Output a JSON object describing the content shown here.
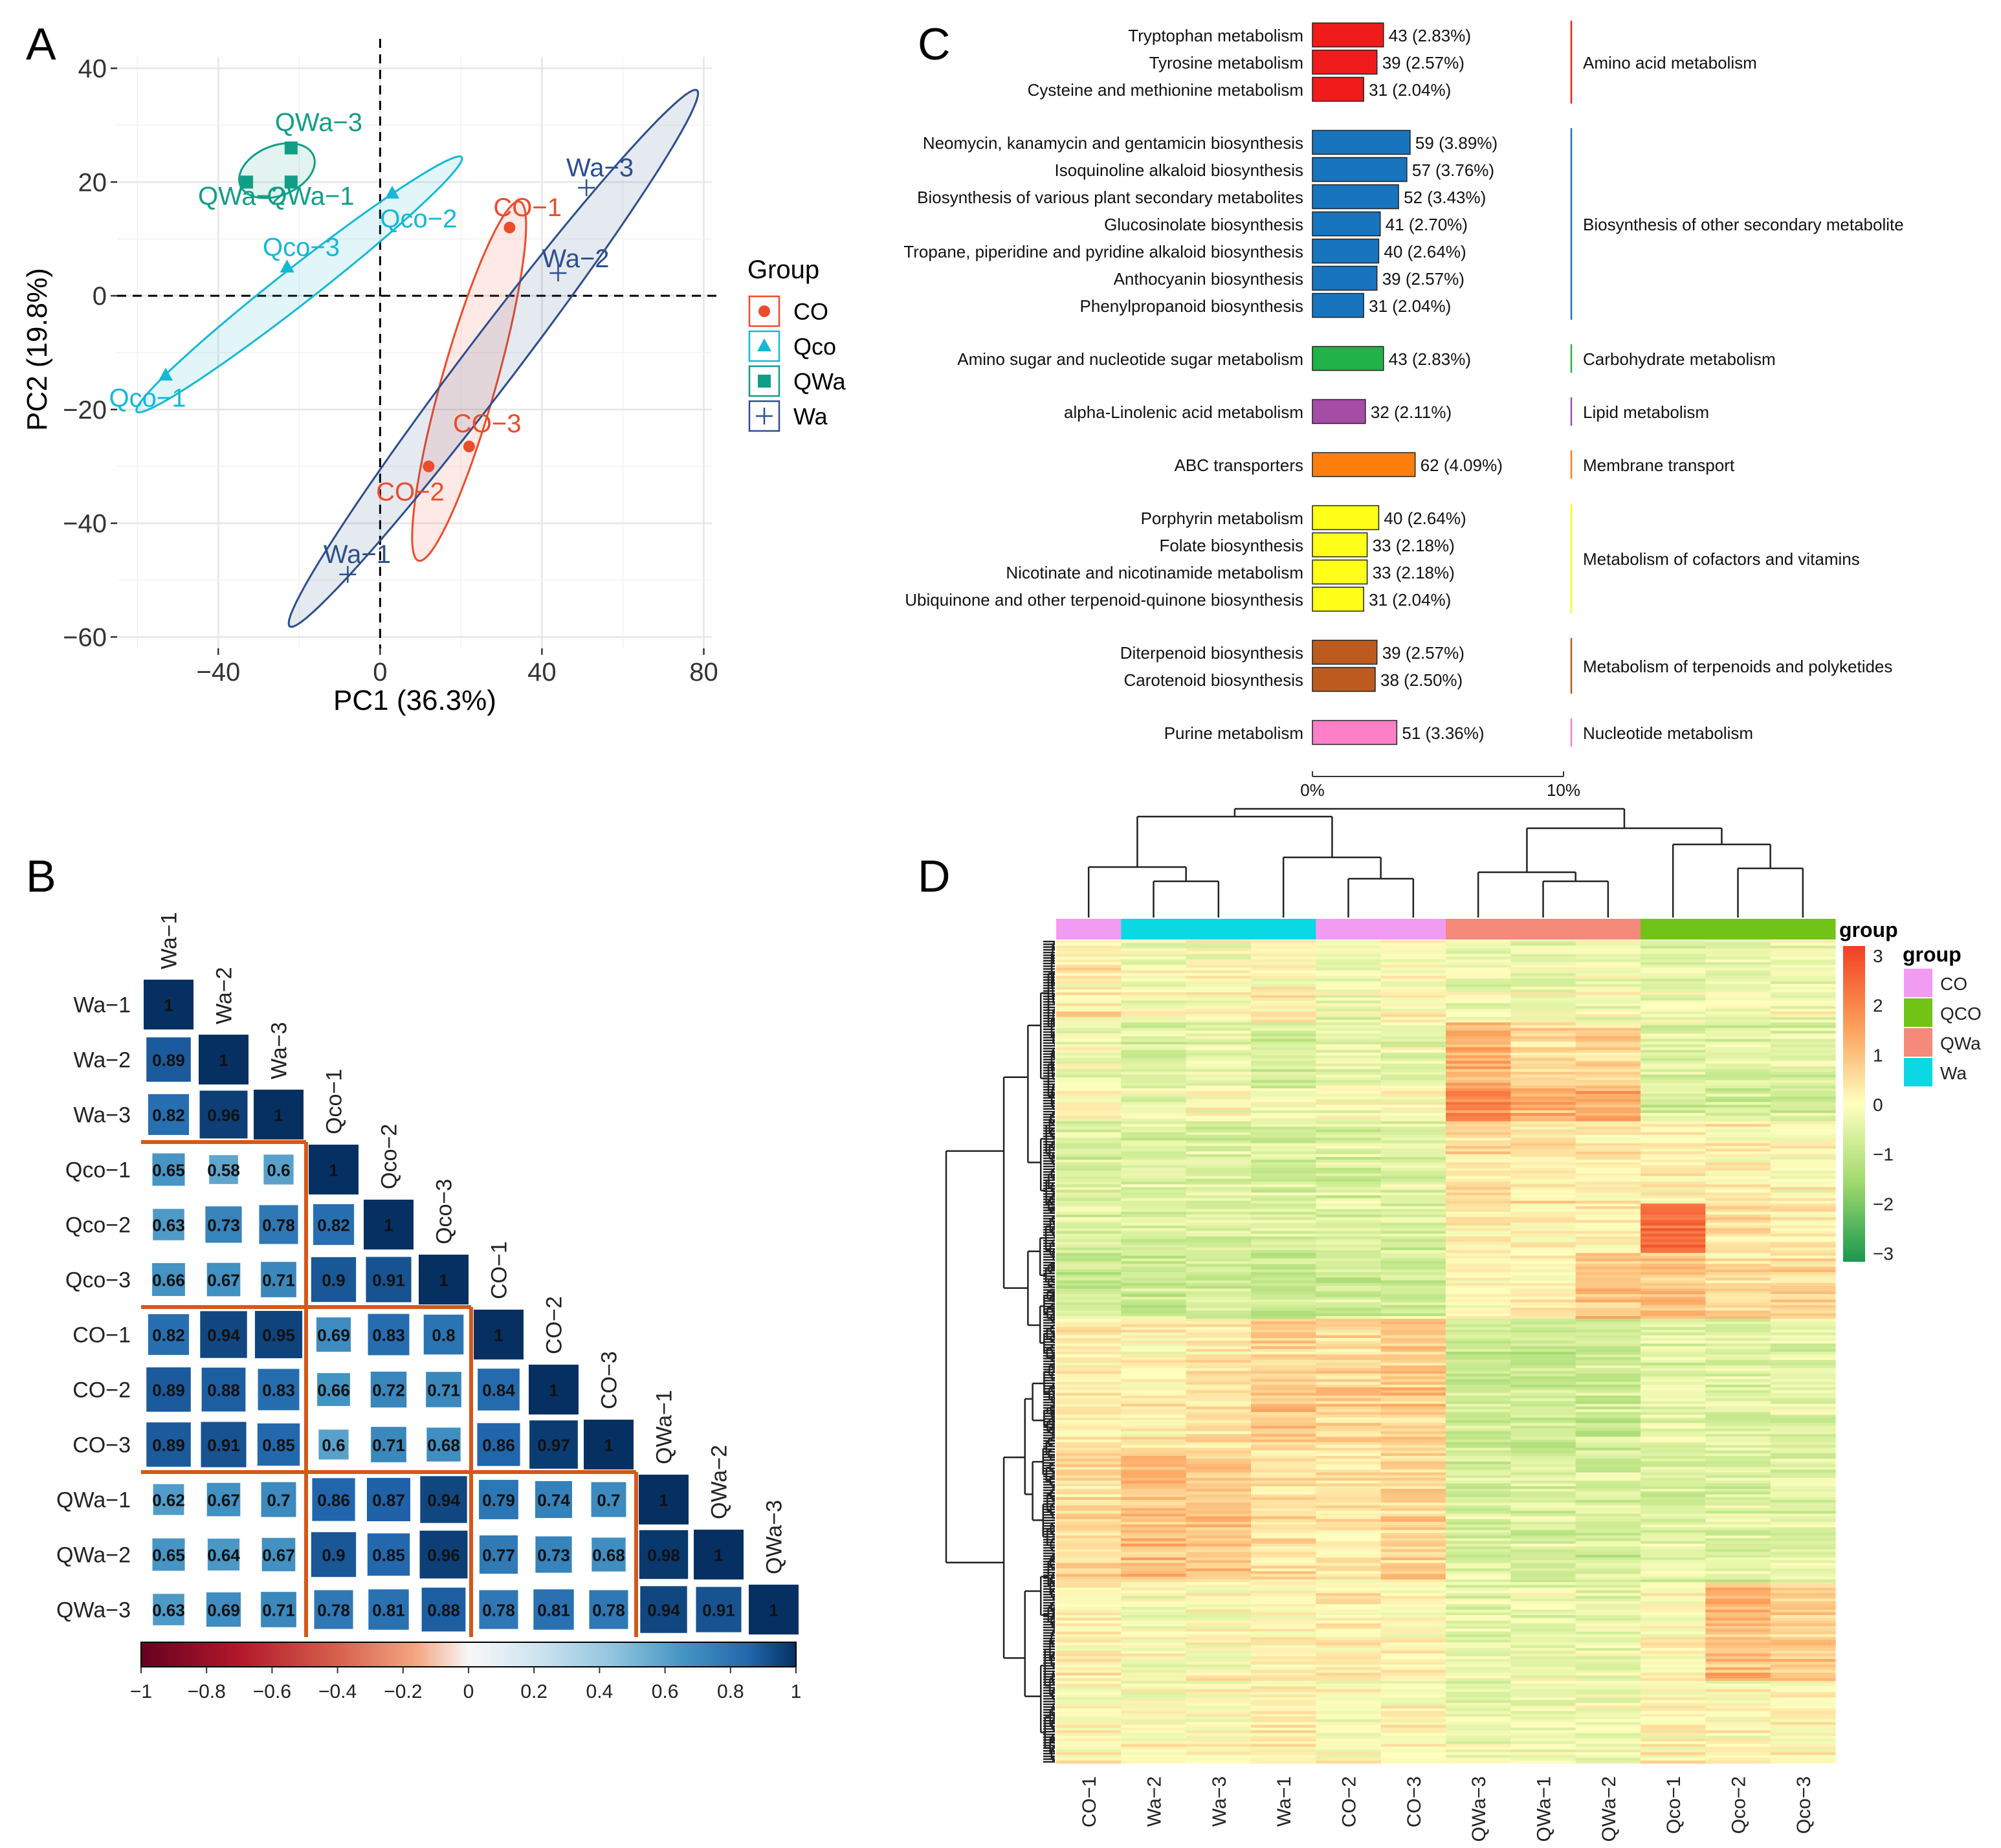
{
  "colors": {
    "CO": "#ee4b2b",
    "Qco": "#13b9d6",
    "QWa": "#119e86",
    "Wa": "#2c4f8e",
    "corr_low": "#67001f",
    "corr_mid": "#f7f7f7",
    "corr_high": "#053061",
    "block_line": "#d4581a",
    "heat_low": "#1a9850",
    "heat_mid": "#ffffbf",
    "heat_high": "#f24023",
    "heat_group_CO": "#f29bf2",
    "heat_group_QCO": "#71c318",
    "heat_group_QWa": "#f5897a",
    "heat_group_Wa": "#0bd8e2"
  },
  "panel_labels": [
    "A",
    "B",
    "C",
    "D"
  ],
  "chart_data": [
    {
      "panel": "A",
      "type": "scatter",
      "xlabel": "PC1 (36.3%)",
      "ylabel": "PC2 (19.8%)",
      "xlim": [
        -65,
        82
      ],
      "ylim": [
        -62,
        42
      ],
      "xticks": [
        -40,
        0,
        40,
        80
      ],
      "xtick_labels": [
        "−40",
        "0",
        "40",
        "80"
      ],
      "yticks": [
        40,
        20,
        0,
        -20,
        -40,
        -60
      ],
      "ytick_labels": [
        "40",
        "20",
        "0",
        "−20",
        "−40",
        "−60"
      ],
      "legend_title": "Group",
      "legend_position": "right",
      "groups": [
        {
          "name": "CO",
          "marker": "circle",
          "points": [
            {
              "label": "CO−1",
              "x": 32,
              "y": 12
            },
            {
              "label": "CO−2",
              "x": 12,
              "y": -30
            },
            {
              "label": "CO−3",
              "x": 22,
              "y": -26.5
            }
          ],
          "ellipse": {
            "cx": 22,
            "cy": -15,
            "a": 34,
            "b": 6.5,
            "angle": 68
          }
        },
        {
          "name": "Qco",
          "marker": "triangle",
          "points": [
            {
              "label": "Qco−1",
              "x": -53,
              "y": -14
            },
            {
              "label": "Qco−2",
              "x": 3,
              "y": 18
            },
            {
              "label": "Qco−3",
              "x": -23,
              "y": 5
            }
          ],
          "ellipse": {
            "cx": -20,
            "cy": 2,
            "a": 46,
            "b": 3.5,
            "angle": 29
          }
        },
        {
          "name": "QWa",
          "marker": "square",
          "points": [
            {
              "label": "QWa−1",
              "x": -22,
              "y": 20
            },
            {
              "label": "QWa−2",
              "x": -33,
              "y": 20
            },
            {
              "label": "QWa−3",
              "x": -22,
              "y": 26
            }
          ],
          "ellipse": {
            "cx": -25.5,
            "cy": 22,
            "a": 9.5,
            "b": 4.5,
            "angle": 12
          }
        },
        {
          "name": "Wa",
          "marker": "cross",
          "points": [
            {
              "label": "Wa−1",
              "x": -8,
              "y": -49
            },
            {
              "label": "Wa−2",
              "x": 44,
              "y": 4
            },
            {
              "label": "Wa−3",
              "x": 51,
              "y": 19
            }
          ],
          "ellipse": {
            "cx": 28,
            "cy": -11,
            "a": 69,
            "b": 5.5,
            "angle": 43
          }
        }
      ],
      "point_labels": [
        {
          "text": "QWa−3",
          "x": -26,
          "y": 29,
          "group": "QWa"
        },
        {
          "text": "QWa−2",
          "x": -45,
          "y": 16,
          "group": "QWa"
        },
        {
          "text": "QWa−1",
          "x": -28,
          "y": 16,
          "group": "QWa"
        },
        {
          "text": "Qco−2",
          "x": 0,
          "y": 12,
          "group": "Qco"
        },
        {
          "text": "Qco−3",
          "x": -29,
          "y": 7,
          "group": "Qco"
        },
        {
          "text": "Qco−1",
          "x": -67,
          "y": -19.5,
          "group": "Qco"
        },
        {
          "text": "CO−1",
          "x": 28,
          "y": 14,
          "group": "CO"
        },
        {
          "text": "CO−3",
          "x": 18,
          "y": -24,
          "group": "CO"
        },
        {
          "text": "CO−2",
          "x": -1,
          "y": -36,
          "group": "CO"
        },
        {
          "text": "Wa−3",
          "x": 46,
          "y": 21,
          "group": "Wa"
        },
        {
          "text": "Wa−2",
          "x": 40,
          "y": 5,
          "group": "Wa"
        },
        {
          "text": "Wa−1",
          "x": -14,
          "y": -47,
          "group": "Wa"
        }
      ]
    },
    {
      "panel": "B",
      "type": "heatmap",
      "subtype": "correlation-lower-triangle",
      "labels": [
        "Wa−1",
        "Wa−2",
        "Wa−3",
        "Qco−1",
        "Qco−2",
        "Qco−3",
        "CO−1",
        "CO−2",
        "CO−3",
        "QWa−1",
        "QWa−2",
        "QWa−3"
      ],
      "values": [
        [
          "1"
        ],
        [
          "0.89",
          "1"
        ],
        [
          "0.82",
          "0.96",
          "1"
        ],
        [
          "0.65",
          "0.58",
          "0.6",
          "1"
        ],
        [
          "0.63",
          "0.73",
          "0.78",
          "0.82",
          "1"
        ],
        [
          "0.66",
          "0.67",
          "0.71",
          "0.9",
          "0.91",
          "1"
        ],
        [
          "0.82",
          "0.94",
          "0.95",
          "0.69",
          "0.83",
          "0.8",
          "1"
        ],
        [
          "0.89",
          "0.88",
          "0.83",
          "0.66",
          "0.72",
          "0.71",
          "0.84",
          "1"
        ],
        [
          "0.89",
          "0.91",
          "0.85",
          "0.6",
          "0.71",
          "0.68",
          "0.86",
          "0.97",
          "1"
        ],
        [
          "0.62",
          "0.67",
          "0.7",
          "0.86",
          "0.87",
          "0.94",
          "0.79",
          "0.74",
          "0.7",
          "1"
        ],
        [
          "0.65",
          "0.64",
          "0.67",
          "0.9",
          "0.85",
          "0.96",
          "0.77",
          "0.73",
          "0.68",
          "0.98",
          "1"
        ],
        [
          "0.63",
          "0.69",
          "0.71",
          "0.78",
          "0.81",
          "0.88",
          "0.78",
          "0.81",
          "0.78",
          "0.94",
          "0.91",
          "1"
        ]
      ],
      "block_boundaries": [
        3,
        6,
        9
      ],
      "colorbar": {
        "range": [
          -1,
          1
        ],
        "ticks": [
          "−1",
          "−0.8",
          "−0.6",
          "−0.4",
          "−0.2",
          "0",
          "0.2",
          "0.4",
          "0.6",
          "0.8",
          "1"
        ]
      }
    },
    {
      "panel": "C",
      "type": "bar",
      "orientation": "horizontal",
      "xlim": [
        0,
        10
      ],
      "xtick_labels": [
        "0%",
        "10%"
      ],
      "groups": [
        {
          "category": "Amino acid metabolism",
          "color": "#f01c1c",
          "items": [
            {
              "name": "Tryptophan metabolism",
              "count": 43,
              "percent": 2.83,
              "label": "43 (2.83%)"
            },
            {
              "name": "Tyrosine metabolism",
              "count": 39,
              "percent": 2.57,
              "label": "39 (2.57%)"
            },
            {
              "name": "Cysteine and methionine metabolism",
              "count": 31,
              "percent": 2.04,
              "label": "31 (2.04%)"
            }
          ]
        },
        {
          "category": "Biosynthesis of other secondary metabolite",
          "color": "#1874bd",
          "items": [
            {
              "name": "Neomycin, kanamycin and gentamicin biosynthesis",
              "count": 59,
              "percent": 3.89,
              "label": "59 (3.89%)"
            },
            {
              "name": "Isoquinoline alkaloid biosynthesis",
              "count": 57,
              "percent": 3.76,
              "label": "57 (3.76%)"
            },
            {
              "name": "Biosynthesis of various plant secondary metabolites",
              "count": 52,
              "percent": 3.43,
              "label": "52 (3.43%)"
            },
            {
              "name": "Glucosinolate biosynthesis",
              "count": 41,
              "percent": 2.7,
              "label": "41 (2.70%)"
            },
            {
              "name": "Tropane, piperidine and pyridine alkaloid biosynthesis",
              "count": 40,
              "percent": 2.64,
              "label": "40 (2.64%)"
            },
            {
              "name": "Anthocyanin biosynthesis",
              "count": 39,
              "percent": 2.57,
              "label": "39 (2.57%)"
            },
            {
              "name": "Phenylpropanoid biosynthesis",
              "count": 31,
              "percent": 2.04,
              "label": "31 (2.04%)"
            }
          ]
        },
        {
          "category": "Carbohydrate metabolism",
          "color": "#21b24a",
          "items": [
            {
              "name": "Amino sugar and nucleotide sugar metabolism",
              "count": 43,
              "percent": 2.83,
              "label": "43 (2.83%)"
            }
          ]
        },
        {
          "category": "Lipid metabolism",
          "color": "#a44ca6",
          "items": [
            {
              "name": "alpha-Linolenic acid metabolism",
              "count": 32,
              "percent": 2.11,
              "label": "32 (2.11%)"
            }
          ]
        },
        {
          "category": "Membrane transport",
          "color": "#ff7f0e",
          "items": [
            {
              "name": "ABC transporters",
              "count": 62,
              "percent": 4.09,
              "label": "62 (4.09%)"
            }
          ]
        },
        {
          "category": "Metabolism of cofactors and vitamins",
          "color": "#ffff1a",
          "items": [
            {
              "name": "Porphyrin metabolism",
              "count": 40,
              "percent": 2.64,
              "label": "40 (2.64%)"
            },
            {
              "name": "Folate biosynthesis",
              "count": 33,
              "percent": 2.18,
              "label": "33 (2.18%)"
            },
            {
              "name": "Nicotinate and nicotinamide metabolism",
              "count": 33,
              "percent": 2.18,
              "label": "33 (2.18%)"
            },
            {
              "name": "Ubiquinone and other terpenoid-quinone biosynthesis",
              "count": 31,
              "percent": 2.04,
              "label": "31 (2.04%)"
            }
          ]
        },
        {
          "category": "Metabolism of terpenoids and polyketides",
          "color": "#bd5b1e",
          "items": [
            {
              "name": "Diterpenoid biosynthesis",
              "count": 39,
              "percent": 2.57,
              "label": "39 (2.57%)"
            },
            {
              "name": "Carotenoid biosynthesis",
              "count": 38,
              "percent": 2.5,
              "label": "38 (2.50%)"
            }
          ]
        },
        {
          "category": "Nucleotide metabolism",
          "color": "#ff7fc8",
          "items": [
            {
              "name": "Purine metabolism",
              "count": 51,
              "percent": 3.36,
              "label": "51 (3.36%)"
            }
          ]
        }
      ]
    },
    {
      "panel": "D",
      "type": "heatmap",
      "subtype": "clustered-expression",
      "columns": [
        "CO−1",
        "Wa−2",
        "Wa−3",
        "Wa−1",
        "CO−2",
        "CO−3",
        "QWa−3",
        "QWa−1",
        "QWa−2",
        "Qco−1",
        "Qco−2",
        "Qco−3"
      ],
      "column_groups": [
        "CO",
        "Wa",
        "Wa",
        "Wa",
        "CO",
        "CO",
        "QWa",
        "QWa",
        "QWa",
        "QCO",
        "QCO",
        "QCO"
      ],
      "colorbar_title": "group",
      "colorbar": {
        "range": [
          -3,
          3
        ],
        "ticks": [
          "3",
          "2",
          "1",
          "0",
          "−1",
          "−2",
          "−3"
        ]
      },
      "legend_title": "group",
      "legend": [
        "CO",
        "QCO",
        "QWa",
        "Wa"
      ],
      "approx_rows": 300
    }
  ]
}
